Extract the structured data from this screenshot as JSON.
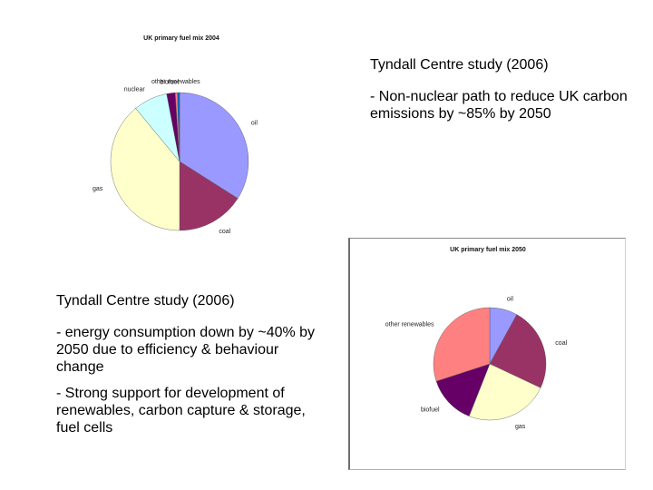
{
  "chart_data": [
    {
      "type": "pie",
      "title": "UK primary fuel mix 2004",
      "categories": [
        "oil",
        "coal",
        "gas",
        "nuclear",
        "biofuel",
        "other renewables",
        "other"
      ],
      "values": [
        34,
        16,
        39,
        8,
        2,
        0.5,
        0.5
      ],
      "labels": [
        "oil",
        "coal",
        "gas",
        "nuclear",
        "biofuel",
        "other renewables",
        ""
      ],
      "colors": [
        "#9999ff",
        "#993366",
        "#ffffcc",
        "#ccffff",
        "#660066",
        "#ff8080",
        "#0066cc"
      ]
    },
    {
      "type": "pie",
      "title": "UK primary fuel mix 2050",
      "categories": [
        "oil",
        "coal",
        "gas",
        "biofuel",
        "other renewables"
      ],
      "values": [
        8,
        24,
        24,
        14,
        30
      ],
      "labels": [
        "oil",
        "coal",
        "gas",
        "biofuel",
        "other renewables"
      ],
      "colors": [
        "#9999ff",
        "#993366",
        "#ffffcc",
        "#660066",
        "#ff8080"
      ]
    }
  ],
  "text_top": {
    "heading": "Tyndall Centre study (2006)",
    "bullets": [
      "- Non-nuclear path to reduce UK carbon emissions by ~85% by 2050"
    ]
  },
  "text_bottom": {
    "heading": "Tyndall Centre study (2006)",
    "bullets": [
      "- energy consumption down by ~40% by 2050 due to efficiency & behaviour change",
      "- Strong support for development of renewables, carbon capture & storage, fuel cells"
    ]
  }
}
